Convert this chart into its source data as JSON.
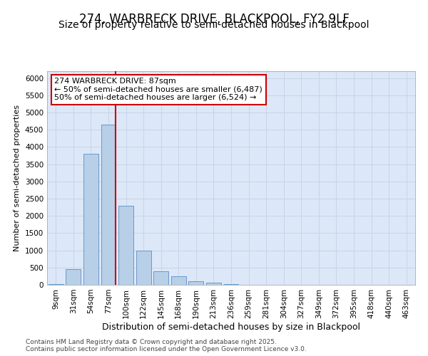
{
  "title1": "274, WARBRECK DRIVE, BLACKPOOL, FY2 9LF",
  "title2": "Size of property relative to semi-detached houses in Blackpool",
  "xlabel": "Distribution of semi-detached houses by size in Blackpool",
  "ylabel": "Number of semi-detached properties",
  "categories": [
    "9sqm",
    "31sqm",
    "54sqm",
    "77sqm",
    "100sqm",
    "122sqm",
    "145sqm",
    "168sqm",
    "190sqm",
    "213sqm",
    "236sqm",
    "259sqm",
    "281sqm",
    "304sqm",
    "327sqm",
    "349sqm",
    "372sqm",
    "395sqm",
    "418sqm",
    "440sqm",
    "463sqm"
  ],
  "values": [
    30,
    450,
    3800,
    4650,
    2300,
    1000,
    400,
    250,
    100,
    60,
    30,
    10,
    5,
    2,
    1,
    0,
    0,
    0,
    0,
    0,
    0
  ],
  "bar_color": "#b8cfe8",
  "bar_edge_color": "#5b8ec4",
  "red_line_index": 3,
  "property_label": "274 WARBRECK DRIVE: 87sqm",
  "smaller_label": "← 50% of semi-detached houses are smaller (6,487)",
  "larger_label": "50% of semi-detached houses are larger (6,524) →",
  "annotation_box_color": "#ffffff",
  "annotation_box_edge": "#cc0000",
  "ylim": [
    0,
    6200
  ],
  "yticks": [
    0,
    500,
    1000,
    1500,
    2000,
    2500,
    3000,
    3500,
    4000,
    4500,
    5000,
    5500,
    6000
  ],
  "grid_color": "#c8d4e8",
  "bg_color": "#dce8f8",
  "footnote": "Contains HM Land Registry data © Crown copyright and database right 2025.\nContains public sector information licensed under the Open Government Licence v3.0.",
  "title1_fontsize": 12,
  "title2_fontsize": 10,
  "xlabel_fontsize": 9,
  "ylabel_fontsize": 8,
  "tick_fontsize": 7.5,
  "annot_fontsize": 8,
  "footnote_fontsize": 6.5
}
